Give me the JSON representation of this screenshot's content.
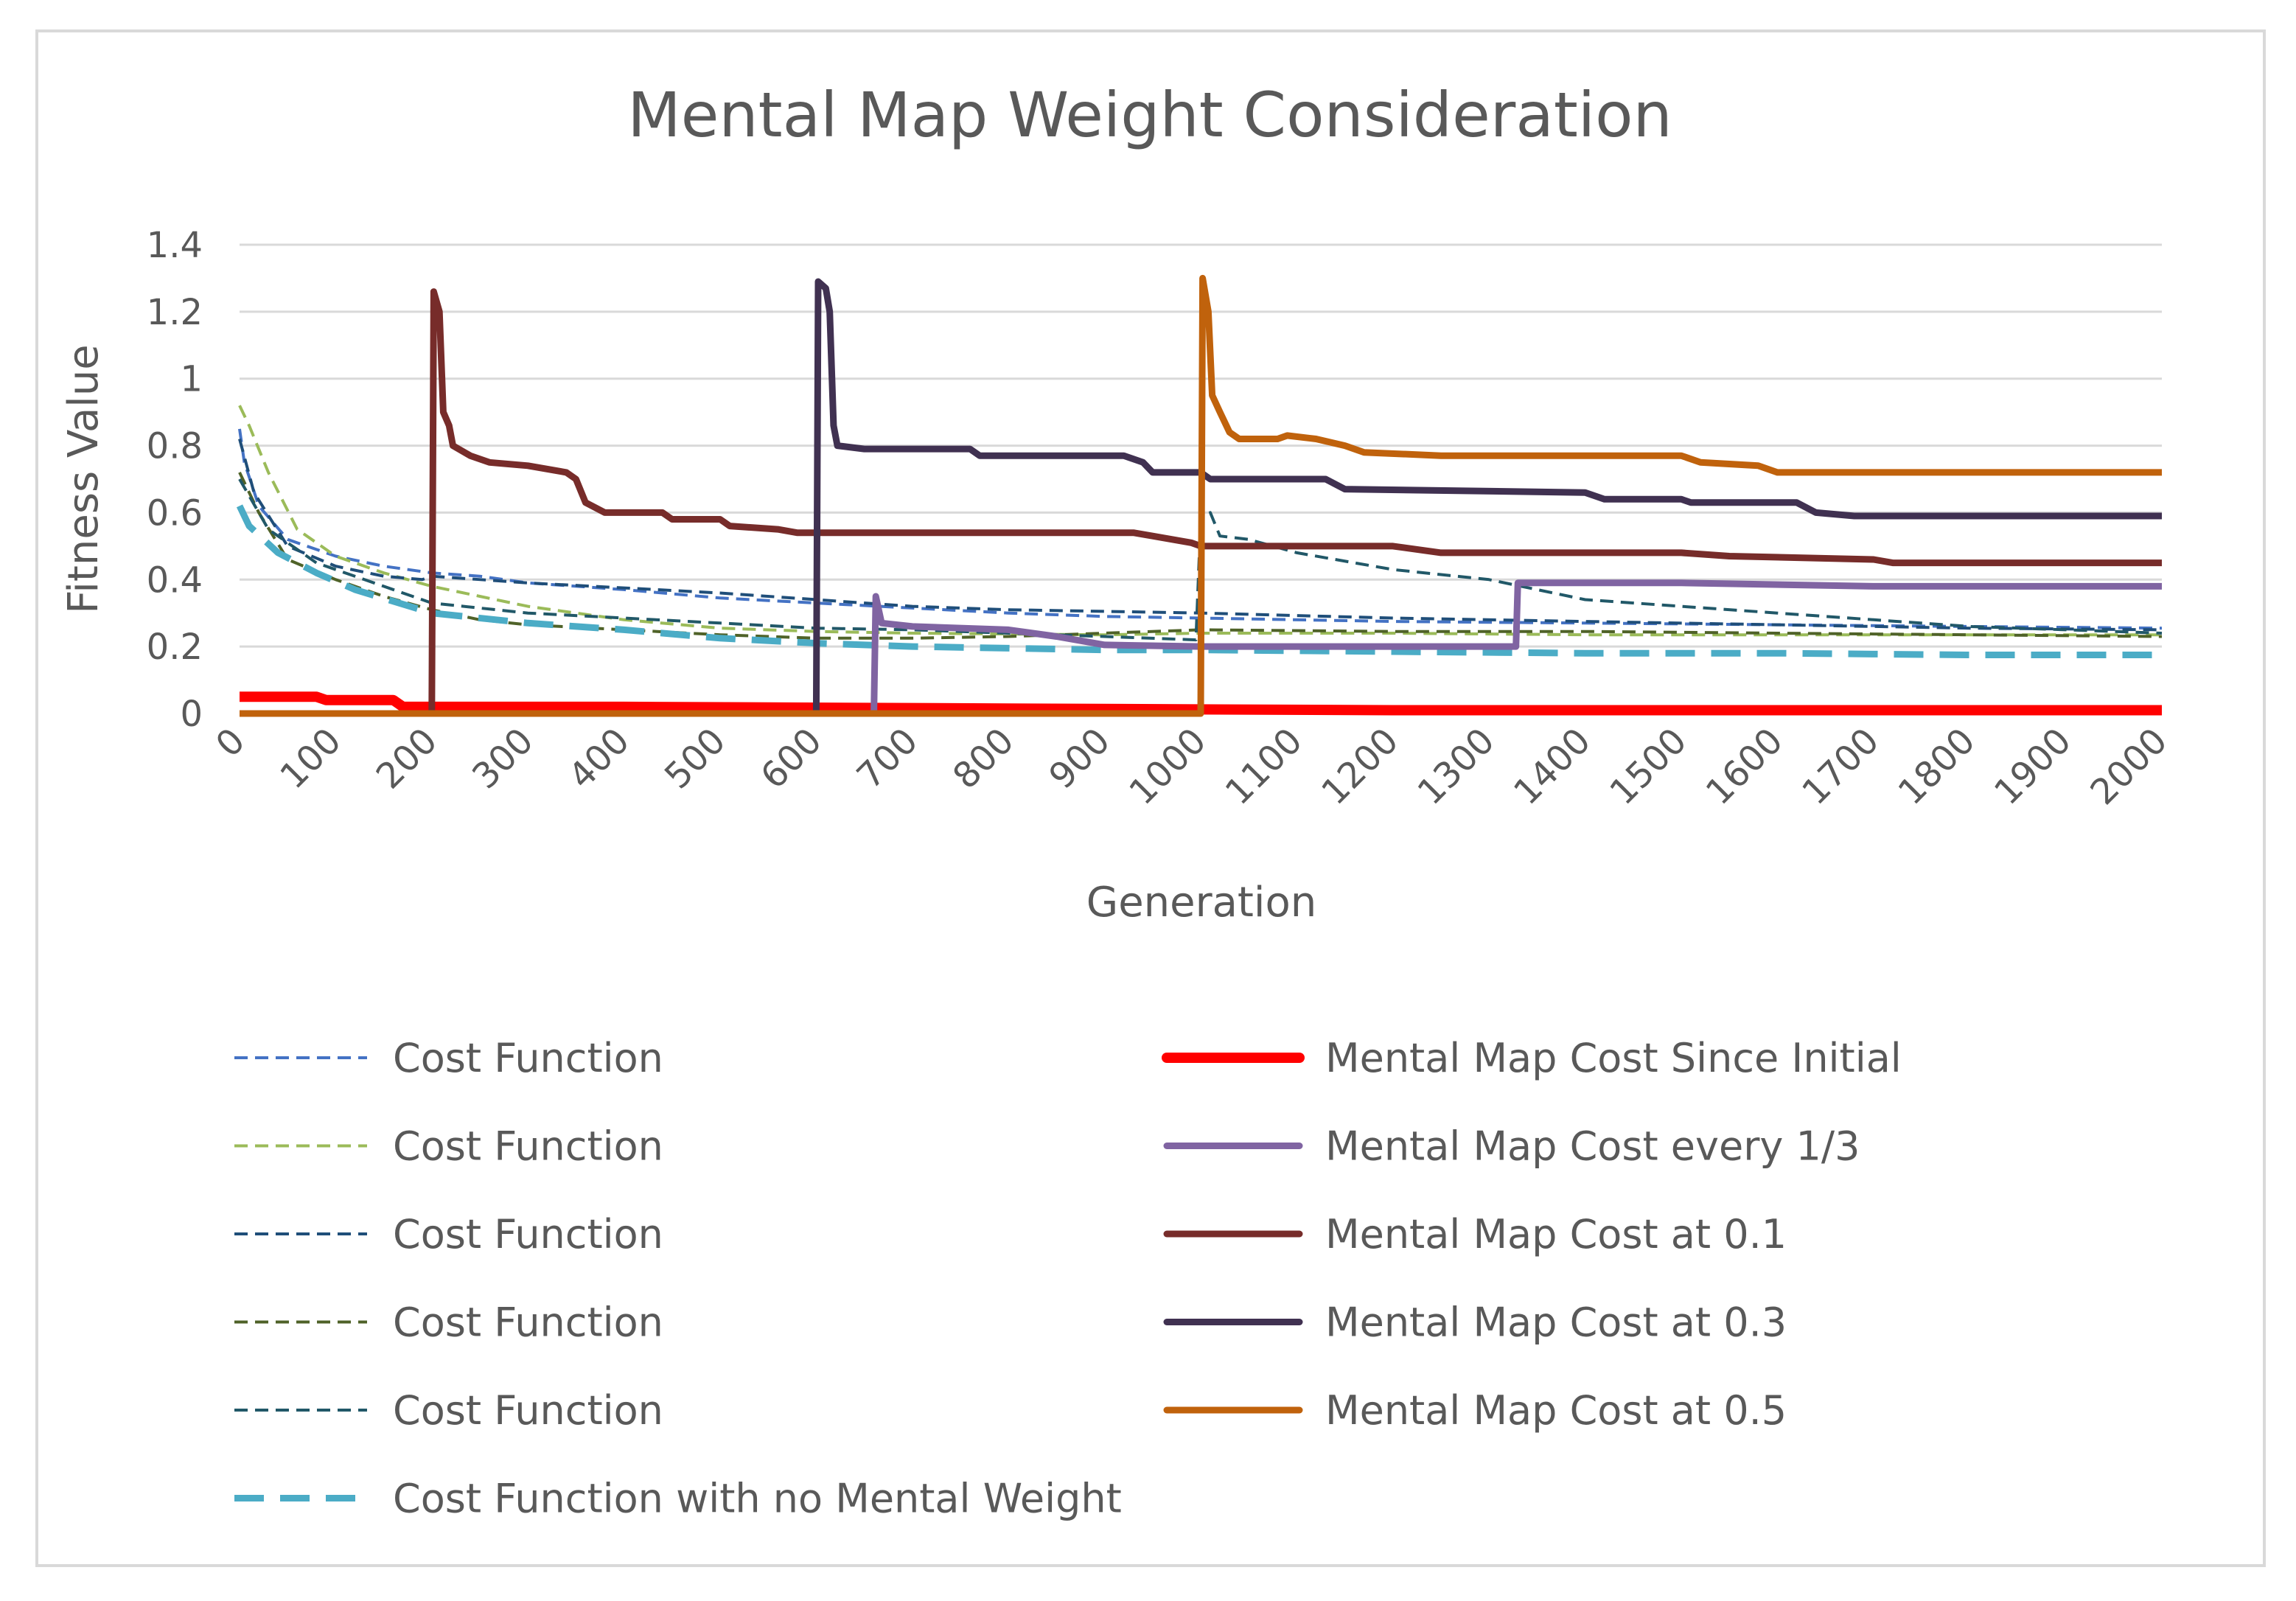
{
  "chart_data": {
    "type": "line",
    "title": "Mental Map Weight Consideration",
    "xlabel": "Generation",
    "ylabel": "Fitness Value",
    "xlim": [
      0,
      2000
    ],
    "ylim": [
      0,
      1.4
    ],
    "x_ticks": [
      "0",
      "100",
      "200",
      "300",
      "400",
      "500",
      "600",
      "700",
      "800",
      "900",
      "1000",
      "1100",
      "1200",
      "1300",
      "1400",
      "1500",
      "1600",
      "1700",
      "1800",
      "1900",
      "2000"
    ],
    "x_tick_values": [
      0,
      100,
      200,
      300,
      400,
      500,
      600,
      700,
      800,
      900,
      1000,
      1100,
      1200,
      1300,
      1400,
      1500,
      1600,
      1700,
      1800,
      1900,
      2000
    ],
    "y_ticks": [
      "0",
      "0.2",
      "0.4",
      "0.6",
      "0.8",
      "1",
      "1.2",
      "1.4"
    ],
    "y_tick_values": [
      0,
      0.2,
      0.4,
      0.6,
      0.8,
      1.0,
      1.2,
      1.4
    ],
    "grid": true,
    "legend_position": "bottom",
    "series": [
      {
        "name": "Cost Function",
        "color": "#4472c4",
        "style": "dashed-thin",
        "points": [
          [
            0,
            0.85
          ],
          [
            5,
            0.75
          ],
          [
            20,
            0.62
          ],
          [
            50,
            0.52
          ],
          [
            100,
            0.47
          ],
          [
            150,
            0.44
          ],
          [
            200,
            0.42
          ],
          [
            250,
            0.41
          ],
          [
            300,
            0.39
          ],
          [
            400,
            0.37
          ],
          [
            500,
            0.345
          ],
          [
            600,
            0.33
          ],
          [
            700,
            0.315
          ],
          [
            800,
            0.3
          ],
          [
            900,
            0.29
          ],
          [
            1000,
            0.285
          ],
          [
            1200,
            0.275
          ],
          [
            1400,
            0.27
          ],
          [
            1600,
            0.265
          ],
          [
            1800,
            0.26
          ],
          [
            2000,
            0.255
          ]
        ]
      },
      {
        "name": "Cost Function",
        "color": "#9bbb59",
        "style": "dashed-thin",
        "points": [
          [
            0,
            0.92
          ],
          [
            10,
            0.86
          ],
          [
            30,
            0.72
          ],
          [
            60,
            0.55
          ],
          [
            100,
            0.47
          ],
          [
            150,
            0.42
          ],
          [
            200,
            0.38
          ],
          [
            250,
            0.35
          ],
          [
            300,
            0.32
          ],
          [
            400,
            0.28
          ],
          [
            500,
            0.255
          ],
          [
            600,
            0.245
          ],
          [
            700,
            0.24
          ],
          [
            900,
            0.235
          ],
          [
            1000,
            0.24
          ],
          [
            1200,
            0.24
          ],
          [
            1400,
            0.235
          ],
          [
            1600,
            0.235
          ],
          [
            1800,
            0.235
          ],
          [
            2000,
            0.235
          ]
        ]
      },
      {
        "name": "Cost Function",
        "color": "#1f4e79",
        "style": "dashed-thin",
        "points": [
          [
            0,
            0.82
          ],
          [
            15,
            0.66
          ],
          [
            50,
            0.5
          ],
          [
            100,
            0.44
          ],
          [
            150,
            0.41
          ],
          [
            190,
            0.4
          ],
          [
            200,
            0.41
          ],
          [
            300,
            0.39
          ],
          [
            400,
            0.375
          ],
          [
            500,
            0.36
          ],
          [
            600,
            0.34
          ],
          [
            700,
            0.32
          ],
          [
            800,
            0.31
          ],
          [
            900,
            0.305
          ],
          [
            1000,
            0.3
          ],
          [
            1200,
            0.285
          ],
          [
            1400,
            0.275
          ],
          [
            1600,
            0.265
          ],
          [
            1800,
            0.255
          ],
          [
            2000,
            0.25
          ]
        ]
      },
      {
        "name": "Cost Function",
        "color": "#4f6228",
        "style": "dashed-thin",
        "points": [
          [
            0,
            0.72
          ],
          [
            20,
            0.6
          ],
          [
            50,
            0.46
          ],
          [
            100,
            0.4
          ],
          [
            150,
            0.35
          ],
          [
            200,
            0.31
          ],
          [
            250,
            0.28
          ],
          [
            300,
            0.265
          ],
          [
            400,
            0.25
          ],
          [
            500,
            0.235
          ],
          [
            600,
            0.225
          ],
          [
            700,
            0.225
          ],
          [
            800,
            0.23
          ],
          [
            900,
            0.24
          ],
          [
            1000,
            0.25
          ],
          [
            1200,
            0.245
          ],
          [
            1400,
            0.245
          ],
          [
            1600,
            0.24
          ],
          [
            1800,
            0.235
          ],
          [
            2000,
            0.23
          ]
        ]
      },
      {
        "name": "Cost Function",
        "color": "#215868",
        "style": "dashed-thin",
        "points": [
          [
            0,
            0.7
          ],
          [
            30,
            0.55
          ],
          [
            80,
            0.45
          ],
          [
            150,
            0.38
          ],
          [
            200,
            0.33
          ],
          [
            300,
            0.3
          ],
          [
            400,
            0.285
          ],
          [
            500,
            0.27
          ],
          [
            600,
            0.255
          ],
          [
            700,
            0.25
          ],
          [
            800,
            0.24
          ],
          [
            900,
            0.23
          ],
          [
            995,
            0.22
          ],
          [
            1000,
            0.58
          ],
          [
            1010,
            0.6
          ],
          [
            1020,
            0.53
          ],
          [
            1050,
            0.52
          ],
          [
            1100,
            0.48
          ],
          [
            1200,
            0.43
          ],
          [
            1300,
            0.4
          ],
          [
            1400,
            0.34
          ],
          [
            1500,
            0.32
          ],
          [
            1600,
            0.3
          ],
          [
            1700,
            0.28
          ],
          [
            1800,
            0.26
          ],
          [
            1900,
            0.25
          ],
          [
            2000,
            0.24
          ]
        ]
      },
      {
        "name": "Cost Function with no Mental Weight",
        "color": "#4bacc6",
        "style": "dashed-thick",
        "points": [
          [
            0,
            0.62
          ],
          [
            10,
            0.56
          ],
          [
            40,
            0.48
          ],
          [
            80,
            0.42
          ],
          [
            120,
            0.37
          ],
          [
            200,
            0.3
          ],
          [
            300,
            0.27
          ],
          [
            400,
            0.25
          ],
          [
            500,
            0.225
          ],
          [
            600,
            0.21
          ],
          [
            700,
            0.2
          ],
          [
            800,
            0.195
          ],
          [
            900,
            0.19
          ],
          [
            1000,
            0.19
          ],
          [
            1200,
            0.185
          ],
          [
            1400,
            0.18
          ],
          [
            1600,
            0.18
          ],
          [
            1800,
            0.175
          ],
          [
            2000,
            0.175
          ]
        ]
      },
      {
        "name": "Mental Map Cost Since Initial",
        "color": "#ff0000",
        "style": "solid-thick",
        "points": [
          [
            0,
            0.05
          ],
          [
            80,
            0.05
          ],
          [
            90,
            0.04
          ],
          [
            160,
            0.04
          ],
          [
            170,
            0.02
          ],
          [
            400,
            0.02
          ],
          [
            800,
            0.015
          ],
          [
            1200,
            0.01
          ],
          [
            1600,
            0.01
          ],
          [
            2000,
            0.01
          ]
        ]
      },
      {
        "name": "Mental Map Cost every 1/3",
        "color": "#8064a2",
        "style": "solid-medium",
        "points": [
          [
            0,
            0
          ],
          [
            660,
            0
          ],
          [
            662,
            0.35
          ],
          [
            668,
            0.27
          ],
          [
            700,
            0.26
          ],
          [
            800,
            0.25
          ],
          [
            850,
            0.23
          ],
          [
            900,
            0.205
          ],
          [
            1000,
            0.2
          ],
          [
            1100,
            0.2
          ],
          [
            1200,
            0.2
          ],
          [
            1328,
            0.2
          ],
          [
            1330,
            0.39
          ],
          [
            1500,
            0.39
          ],
          [
            1700,
            0.38
          ],
          [
            2000,
            0.38
          ]
        ]
      },
      {
        "name": "Mental Map Cost at 0.1",
        "color": "#772c2a",
        "style": "solid-medium",
        "points": [
          [
            0,
            0
          ],
          [
            200,
            0
          ],
          [
            202,
            1.26
          ],
          [
            208,
            1.2
          ],
          [
            212,
            0.9
          ],
          [
            218,
            0.86
          ],
          [
            222,
            0.8
          ],
          [
            240,
            0.77
          ],
          [
            260,
            0.75
          ],
          [
            300,
            0.74
          ],
          [
            340,
            0.72
          ],
          [
            350,
            0.7
          ],
          [
            360,
            0.63
          ],
          [
            380,
            0.6
          ],
          [
            440,
            0.6
          ],
          [
            450,
            0.58
          ],
          [
            500,
            0.58
          ],
          [
            510,
            0.56
          ],
          [
            560,
            0.55
          ],
          [
            580,
            0.54
          ],
          [
            930,
            0.54
          ],
          [
            950,
            0.53
          ],
          [
            990,
            0.51
          ],
          [
            1000,
            0.5
          ],
          [
            1200,
            0.5
          ],
          [
            1250,
            0.48
          ],
          [
            1500,
            0.48
          ],
          [
            1550,
            0.47
          ],
          [
            1700,
            0.46
          ],
          [
            1720,
            0.45
          ],
          [
            2000,
            0.45
          ]
        ]
      },
      {
        "name": "Mental Map Cost at 0.3",
        "color": "#403151",
        "style": "solid-medium",
        "points": [
          [
            0,
            0
          ],
          [
            600,
            0
          ],
          [
            602,
            1.29
          ],
          [
            610,
            1.27
          ],
          [
            614,
            1.2
          ],
          [
            618,
            0.86
          ],
          [
            622,
            0.8
          ],
          [
            650,
            0.79
          ],
          [
            760,
            0.79
          ],
          [
            770,
            0.77
          ],
          [
            920,
            0.77
          ],
          [
            940,
            0.75
          ],
          [
            950,
            0.72
          ],
          [
            1000,
            0.72
          ],
          [
            1010,
            0.7
          ],
          [
            1130,
            0.7
          ],
          [
            1150,
            0.67
          ],
          [
            1400,
            0.66
          ],
          [
            1420,
            0.64
          ],
          [
            1500,
            0.64
          ],
          [
            1510,
            0.63
          ],
          [
            1620,
            0.63
          ],
          [
            1640,
            0.6
          ],
          [
            1680,
            0.59
          ],
          [
            2000,
            0.59
          ]
        ]
      },
      {
        "name": "Mental Map Cost at 0.5",
        "color": "#c0620c",
        "style": "solid-medium",
        "points": [
          [
            0,
            0
          ],
          [
            1000,
            0
          ],
          [
            1002,
            1.3
          ],
          [
            1008,
            1.2
          ],
          [
            1012,
            0.95
          ],
          [
            1020,
            0.9
          ],
          [
            1030,
            0.84
          ],
          [
            1040,
            0.82
          ],
          [
            1080,
            0.82
          ],
          [
            1090,
            0.83
          ],
          [
            1120,
            0.82
          ],
          [
            1150,
            0.8
          ],
          [
            1170,
            0.78
          ],
          [
            1250,
            0.77
          ],
          [
            1500,
            0.77
          ],
          [
            1520,
            0.75
          ],
          [
            1580,
            0.74
          ],
          [
            1600,
            0.72
          ],
          [
            2000,
            0.72
          ]
        ]
      }
    ]
  },
  "legend": [
    {
      "label": "Cost Function",
      "color": "#4472c4",
      "style": "dashed-thin"
    },
    {
      "label": "Mental Map Cost Since Initial",
      "color": "#ff0000",
      "style": "solid-thick"
    },
    {
      "label": "Cost Function",
      "color": "#9bbb59",
      "style": "dashed-thin"
    },
    {
      "label": "Mental Map Cost every 1/3",
      "color": "#8064a2",
      "style": "solid-medium"
    },
    {
      "label": "Cost Function",
      "color": "#1f4e79",
      "style": "dashed-thin"
    },
    {
      "label": "Mental Map Cost at 0.1",
      "color": "#772c2a",
      "style": "solid-medium"
    },
    {
      "label": "Cost Function",
      "color": "#4f6228",
      "style": "dashed-thin"
    },
    {
      "label": "Mental Map Cost at 0.3",
      "color": "#403151",
      "style": "solid-medium"
    },
    {
      "label": "Cost Function",
      "color": "#215868",
      "style": "dashed-thin"
    },
    {
      "label": "Mental Map Cost at 0.5",
      "color": "#c0620c",
      "style": "solid-medium"
    },
    {
      "label": "Cost Function with no Mental Weight",
      "color": "#4bacc6",
      "style": "dashed-thick"
    }
  ],
  "colors": {
    "grid": "#d9d9d9",
    "text": "#595959",
    "frame": "#d9d9d9"
  }
}
